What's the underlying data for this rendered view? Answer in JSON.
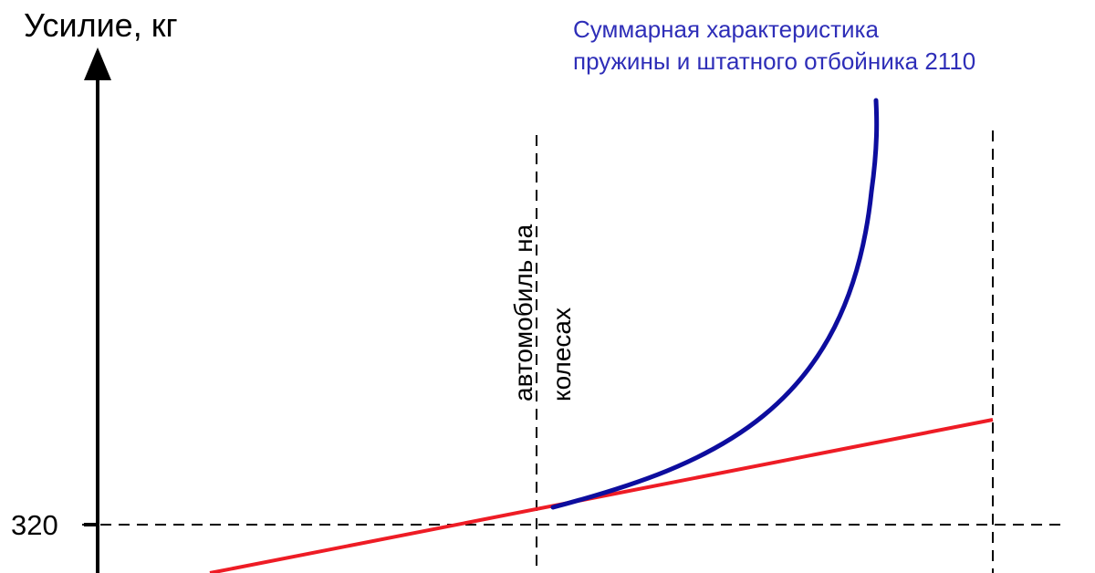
{
  "chart_data": {
    "type": "line",
    "title": "",
    "ylabel": "Усилие, кг",
    "xlabel": "",
    "y_ticks": [
      "320"
    ],
    "grid": false,
    "annotations": {
      "marker_label": "автомобиль на колесах",
      "marker_label_line1": "автомобиль на",
      "marker_label_line2": "колесах",
      "curve_label_line1": "Суммарная характеристика",
      "curve_label_line2": "пружины и штатного отбойника 2110"
    },
    "series": [
      {
        "name": "Суммарная характеристика пружины и штатного отбойника 2110",
        "color": "#0d0d9e",
        "kind": "curve"
      },
      {
        "color": "#ee1c25",
        "kind": "linear"
      }
    ],
    "colors": {
      "axis": "#000000",
      "guide": "#000000",
      "blue": "#2e2eb8"
    }
  }
}
